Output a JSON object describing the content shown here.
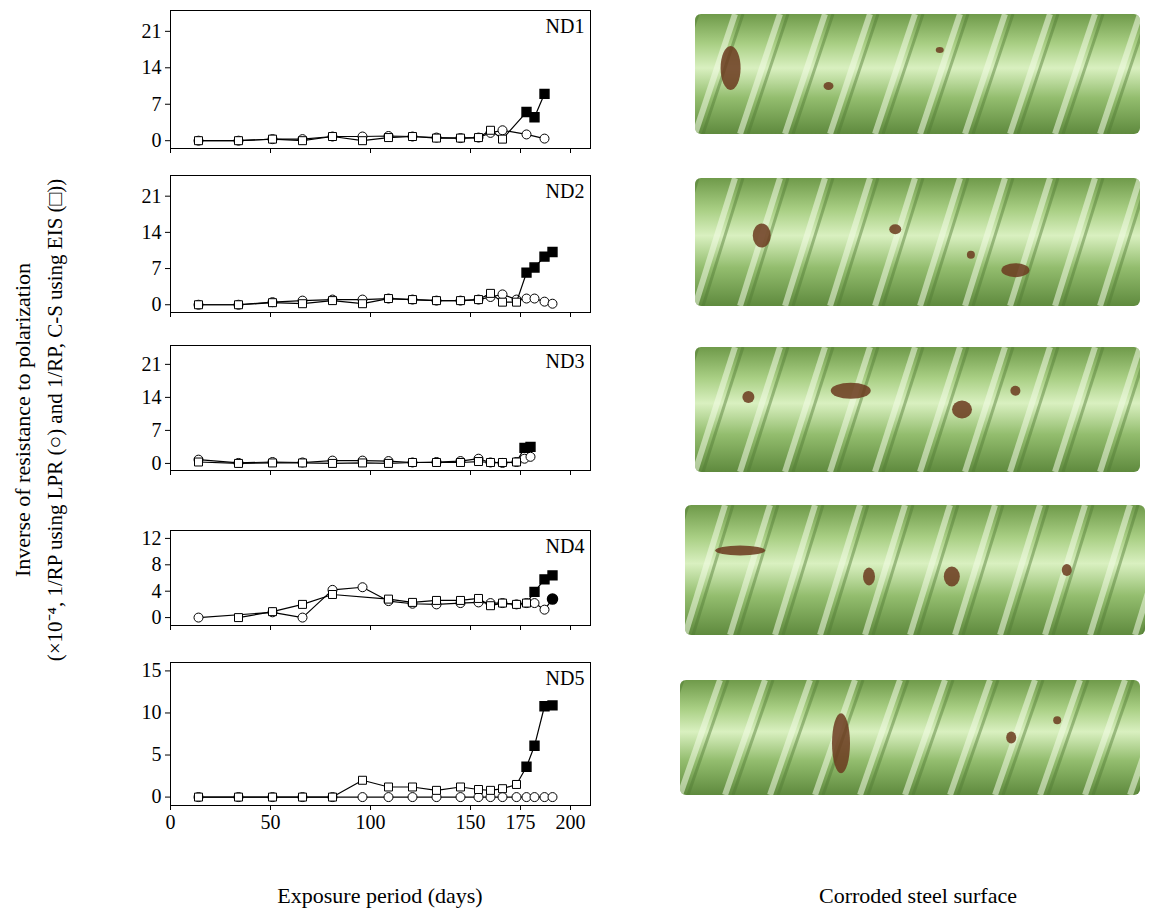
{
  "ylabel": [
    "Inverse of resistance to polarization",
    "(×10⁻⁴, 1/RP using LPR (○) and 1/RP, C-S using EIS (□))"
  ],
  "xlabel": "Exposure period (days)",
  "image_caption": "Corroded steel surface",
  "chart_data": [
    {
      "type": "line",
      "title": "ND1",
      "xlim": [
        0,
        210
      ],
      "xticks": [
        0,
        50,
        100,
        150,
        175,
        200
      ],
      "ylim": [
        -1.5,
        25
      ],
      "yticks": [
        0,
        7,
        14,
        21
      ],
      "tick_labels": "y",
      "grid": false,
      "series": [
        {
          "name": "LPR",
          "color": "#000000",
          "marker": "circle",
          "x": [
            14,
            34,
            51,
            66,
            81,
            96,
            109,
            121,
            133,
            145,
            154,
            160,
            166,
            178,
            187
          ],
          "values": [
            0,
            0,
            0.3,
            0.3,
            0.8,
            0.8,
            0.9,
            0.8,
            0.6,
            0.5,
            0.6,
            1.5,
            2.0,
            1.2,
            0.4
          ],
          "filled": [
            false,
            false,
            false,
            false,
            false,
            false,
            false,
            false,
            false,
            false,
            false,
            false,
            false,
            false,
            false
          ]
        },
        {
          "name": "EIS",
          "color": "#000000",
          "marker": "square",
          "x": [
            14,
            34,
            51,
            66,
            81,
            96,
            109,
            121,
            133,
            145,
            154,
            160,
            166,
            178,
            182,
            187
          ],
          "values": [
            0,
            0,
            0.3,
            0,
            0.8,
            0,
            0.6,
            0.8,
            0.5,
            0.5,
            0.6,
            2.0,
            0.3,
            5.5,
            4.5,
            9.0
          ],
          "filled": [
            false,
            false,
            false,
            false,
            false,
            false,
            false,
            false,
            false,
            false,
            false,
            false,
            false,
            true,
            true,
            true
          ]
        }
      ]
    },
    {
      "type": "line",
      "title": "ND2",
      "xlim": [
        0,
        210
      ],
      "xticks": [
        0,
        50,
        100,
        150,
        175,
        200
      ],
      "ylim": [
        -1.5,
        25
      ],
      "yticks": [
        0,
        7,
        14,
        21
      ],
      "tick_labels": "y",
      "grid": false,
      "series": [
        {
          "name": "LPR",
          "color": "#000000",
          "marker": "circle",
          "x": [
            14,
            34,
            51,
            66,
            81,
            96,
            109,
            121,
            133,
            145,
            154,
            160,
            166,
            173,
            178,
            182,
            187,
            191
          ],
          "values": [
            0,
            0,
            0.5,
            0.8,
            1.0,
            1.0,
            1.2,
            1.0,
            0.8,
            0.8,
            1.0,
            1.5,
            2.0,
            1.0,
            1.2,
            1.2,
            0.6,
            0.2
          ],
          "filled": [
            false,
            false,
            false,
            false,
            false,
            false,
            false,
            false,
            false,
            false,
            false,
            false,
            false,
            false,
            false,
            false,
            false,
            false
          ]
        },
        {
          "name": "EIS",
          "color": "#000000",
          "marker": "square",
          "x": [
            14,
            34,
            51,
            66,
            81,
            96,
            109,
            121,
            133,
            145,
            154,
            160,
            166,
            173,
            178,
            182,
            187,
            191
          ],
          "values": [
            0,
            0,
            0.4,
            0.2,
            0.8,
            0.2,
            1.2,
            1.0,
            0.8,
            0.8,
            1.0,
            2.2,
            0.5,
            0.5,
            6.2,
            7.2,
            9.3,
            10.2
          ],
          "filled": [
            false,
            false,
            false,
            false,
            false,
            false,
            false,
            false,
            false,
            false,
            false,
            false,
            false,
            false,
            true,
            true,
            true,
            true
          ]
        }
      ]
    },
    {
      "type": "line",
      "title": "ND3",
      "xlim": [
        0,
        210
      ],
      "xticks": [
        0,
        50,
        100,
        150,
        175,
        200
      ],
      "ylim": [
        -1.5,
        25
      ],
      "yticks": [
        0,
        7,
        14,
        21
      ],
      "tick_labels": "y",
      "grid": false,
      "series": [
        {
          "name": "LPR",
          "color": "#000000",
          "marker": "circle",
          "x": [
            14,
            34,
            51,
            66,
            81,
            96,
            109,
            121,
            133,
            145,
            154,
            160,
            166,
            173,
            177,
            180
          ],
          "values": [
            0.8,
            0.1,
            0.3,
            0.2,
            0.6,
            0.6,
            0.5,
            0.2,
            0.3,
            0.5,
            1.0,
            0.2,
            0.1,
            0.3,
            1.0,
            1.4
          ],
          "filled": [
            false,
            false,
            false,
            false,
            false,
            false,
            false,
            false,
            false,
            false,
            false,
            false,
            false,
            false,
            false,
            false
          ]
        },
        {
          "name": "EIS",
          "color": "#000000",
          "marker": "square",
          "x": [
            14,
            34,
            51,
            66,
            81,
            96,
            109,
            121,
            133,
            145,
            154,
            160,
            166,
            173,
            177,
            180
          ],
          "values": [
            0.3,
            0,
            0.1,
            0.1,
            0,
            0.1,
            0,
            0.2,
            0.2,
            0.2,
            0.4,
            0.2,
            0.2,
            0.3,
            3.3,
            3.5
          ],
          "filled": [
            false,
            false,
            false,
            false,
            false,
            false,
            false,
            false,
            false,
            false,
            false,
            false,
            false,
            false,
            true,
            true
          ]
        }
      ]
    },
    {
      "type": "line",
      "title": "ND4",
      "xlim": [
        0,
        210
      ],
      "xticks": [
        0,
        50,
        100,
        150,
        175,
        200
      ],
      "ylim": [
        -1.2,
        13.2
      ],
      "yticks": [
        0,
        4,
        8,
        12
      ],
      "tick_labels": "y",
      "grid": false,
      "series": [
        {
          "name": "LPR",
          "color": "#000000",
          "marker": "circle",
          "x": [
            14,
            51,
            66,
            81,
            96,
            109,
            121,
            133,
            145,
            154,
            160,
            166,
            173,
            178,
            182,
            187,
            191
          ],
          "values": [
            0,
            0.8,
            0,
            4.2,
            4.6,
            2.5,
            2.1,
            2.0,
            2.2,
            2.3,
            2.2,
            2.2,
            2.0,
            2.2,
            2.2,
            1.2,
            2.8
          ],
          "filled": [
            false,
            false,
            false,
            false,
            false,
            false,
            false,
            false,
            false,
            false,
            false,
            false,
            false,
            false,
            false,
            false,
            true
          ]
        },
        {
          "name": "EIS",
          "color": "#000000",
          "marker": "square",
          "x": [
            34,
            51,
            66,
            81,
            109,
            121,
            133,
            145,
            154,
            160,
            166,
            173,
            178,
            182,
            187,
            191
          ],
          "values": [
            0,
            0.9,
            2.0,
            3.5,
            2.8,
            2.3,
            2.6,
            2.6,
            2.9,
            1.8,
            2.2,
            2.0,
            2.2,
            3.9,
            5.8,
            6.4
          ],
          "filled": [
            false,
            false,
            false,
            false,
            false,
            false,
            false,
            false,
            false,
            false,
            false,
            false,
            false,
            true,
            true,
            true
          ]
        }
      ]
    },
    {
      "type": "line",
      "title": "ND5",
      "xlim": [
        0,
        210
      ],
      "xticks": [
        0,
        50,
        100,
        150,
        175,
        200
      ],
      "ylim": [
        -1,
        16
      ],
      "yticks": [
        0,
        5,
        10,
        15
      ],
      "tick_labels": true,
      "grid": false,
      "series": [
        {
          "name": "LPR",
          "color": "#000000",
          "marker": "circle",
          "x": [
            14,
            34,
            51,
            66,
            81,
            96,
            109,
            121,
            133,
            145,
            154,
            160,
            166,
            173,
            178,
            182,
            187,
            191
          ],
          "values": [
            0,
            0,
            0,
            0,
            0,
            0,
            0,
            0,
            0,
            0,
            0,
            0,
            0,
            0,
            0,
            0,
            0,
            0
          ],
          "filled": [
            false,
            false,
            false,
            false,
            false,
            false,
            false,
            false,
            false,
            false,
            false,
            false,
            false,
            false,
            false,
            false,
            false,
            false
          ]
        },
        {
          "name": "EIS",
          "color": "#000000",
          "marker": "square",
          "x": [
            14,
            34,
            51,
            66,
            81,
            96,
            109,
            121,
            133,
            145,
            154,
            160,
            166,
            173,
            178,
            182,
            187,
            191
          ],
          "values": [
            0,
            0,
            0,
            0,
            0,
            2.0,
            1.2,
            1.2,
            0.8,
            1.2,
            0.9,
            0.8,
            1.0,
            1.5,
            3.6,
            6.1,
            10.8,
            10.9
          ],
          "filled": [
            false,
            false,
            false,
            false,
            false,
            false,
            false,
            false,
            false,
            false,
            false,
            false,
            false,
            false,
            true,
            true,
            true,
            true
          ]
        }
      ]
    }
  ]
}
